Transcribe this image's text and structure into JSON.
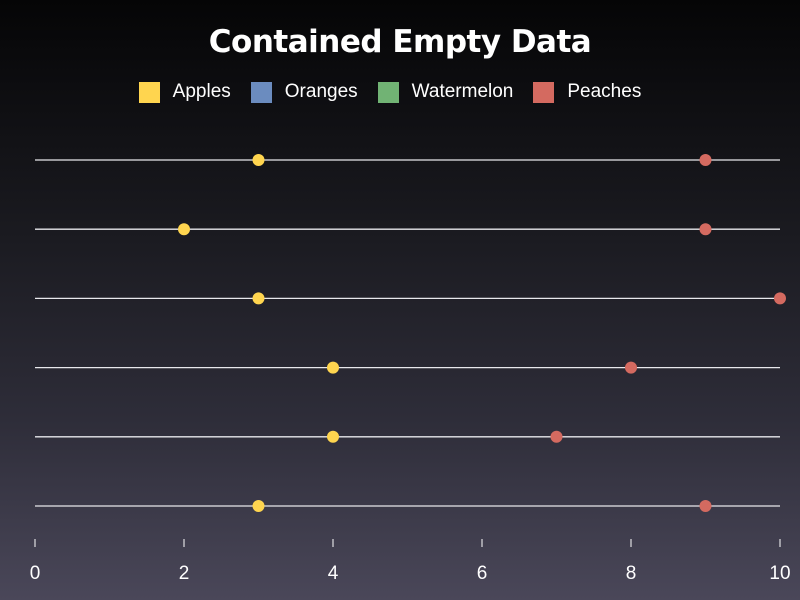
{
  "chart_data": {
    "type": "dumbbell",
    "title": "Contained Empty Data",
    "xlim": [
      0,
      10
    ],
    "x_ticks": [
      "0",
      "2",
      "4",
      "6",
      "8",
      "10"
    ],
    "row_count": 6,
    "legend_placement": "top-center",
    "series": [
      {
        "name": "Apples",
        "color": "#ffd54f",
        "values": [
          3,
          2,
          3,
          4,
          4,
          3
        ]
      },
      {
        "name": "Oranges",
        "color": "#6b8cbf",
        "values": []
      },
      {
        "name": "Watermelon",
        "color": "#71b374",
        "values": []
      },
      {
        "name": "Peaches",
        "color": "#d46a60",
        "values": [
          9,
          9,
          10,
          8,
          7,
          9
        ]
      }
    ],
    "grid": false
  }
}
